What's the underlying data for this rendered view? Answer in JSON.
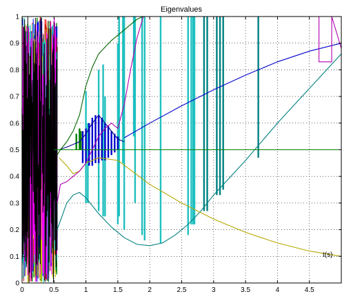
{
  "chart_data": {
    "type": "line",
    "title": "Eigenvalues",
    "xlabel": "t(s)",
    "ylabel": "",
    "xlim": [
      0,
      5
    ],
    "ylim": [
      0,
      1
    ],
    "grid": true,
    "x_ticks": [
      0,
      0.5,
      1,
      1.5,
      2,
      2.5,
      3,
      3.5,
      4,
      4.5
    ],
    "x_tick_labels": [
      "0",
      "0.5",
      "1",
      "1.5",
      "2",
      "2.5",
      "3",
      "3.5",
      "4",
      "4.5"
    ],
    "y_ticks": [
      0,
      0.1,
      0.2,
      0.3,
      0.4,
      0.5,
      0.6,
      0.7,
      0.8,
      0.9,
      1
    ],
    "y_tick_labels": [
      "0",
      "0.1",
      "0.2",
      "0.3",
      "0.4",
      "0.5",
      "0.6",
      "0.7",
      "0.8",
      "0.9",
      "1"
    ],
    "series": [
      {
        "color": "#0000cc",
        "x": [
          1.6,
          2.0,
          2.5,
          3.0,
          3.5,
          4.0,
          4.5,
          5.0
        ],
        "y": [
          0.545,
          0.6,
          0.665,
          0.725,
          0.78,
          0.83,
          0.87,
          0.9
        ]
      },
      {
        "color": "#00008b",
        "x": [
          0.58,
          0.7,
          0.8,
          0.9,
          1.0,
          1.1,
          1.2,
          1.3,
          1.4,
          1.5,
          1.6
        ],
        "y": [
          0.5,
          0.51,
          0.52,
          0.53,
          0.56,
          0.6,
          0.63,
          0.6,
          0.57,
          0.54,
          0.53
        ]
      },
      {
        "color": "#006600",
        "x": [
          0.55,
          0.6,
          0.7,
          0.8,
          0.9,
          1.0,
          1.1,
          1.2,
          1.4,
          1.6,
          1.8,
          1.9
        ],
        "y": [
          0.48,
          0.5,
          0.53,
          0.57,
          0.63,
          0.74,
          0.81,
          0.86,
          0.91,
          0.95,
          0.99,
          1.0
        ]
      },
      {
        "color": "#008080",
        "x": [
          0.55,
          0.7,
          0.8,
          0.9,
          1.0,
          1.2,
          1.4,
          1.6,
          1.8,
          2.0,
          2.2,
          2.4,
          2.6,
          2.8,
          3.0,
          3.5,
          4.0,
          4.5,
          5.0
        ],
        "y": [
          0.2,
          0.3,
          0.33,
          0.34,
          0.32,
          0.26,
          0.21,
          0.17,
          0.145,
          0.14,
          0.15,
          0.18,
          0.22,
          0.27,
          0.33,
          0.46,
          0.6,
          0.73,
          0.86
        ]
      },
      {
        "color": "#b5a800",
        "x": [
          0.58,
          0.7,
          0.8,
          0.9,
          1.0,
          1.2,
          1.5,
          2.0,
          2.5,
          3.0,
          3.5,
          4.0,
          4.5,
          5.0
        ],
        "y": [
          0.47,
          0.44,
          0.41,
          0.42,
          0.45,
          0.47,
          0.46,
          0.37,
          0.3,
          0.24,
          0.19,
          0.15,
          0.12,
          0.1
        ]
      },
      {
        "color": "#008000",
        "x": [
          0.5,
          5.0
        ],
        "y": [
          0.5,
          0.5
        ]
      },
      {
        "color": "#b000b0",
        "x": [
          0.55,
          0.6,
          0.7,
          0.8,
          0.9,
          1.0,
          1.1,
          1.2,
          1.3,
          1.4,
          1.5,
          1.6,
          1.7,
          1.8,
          1.9
        ],
        "y": [
          0.3,
          0.37,
          0.38,
          0.4,
          0.42,
          0.45,
          0.5,
          0.55,
          0.58,
          0.6,
          0.58,
          0.67,
          0.8,
          0.92,
          1.0
        ]
      },
      {
        "color": "#b000b0",
        "x": [
          4.65,
          4.65,
          4.85,
          4.85,
          5.0
        ],
        "y": [
          1.0,
          0.83,
          0.83,
          1.0,
          0.88
        ]
      }
    ],
    "vertical_segments": [
      {
        "color": "#1fbfbf",
        "x": [
          1.5,
          1.52,
          1.58,
          1.6,
          1.75,
          1.77,
          1.88,
          1.92,
          2.17,
          2.6,
          2.65,
          2.68,
          2.7
        ],
        "y_ranges": [
          [
            0.22,
            0.9
          ],
          [
            0.25,
            1.0
          ],
          [
            0.45,
            1.0
          ],
          [
            0.2,
            1.0
          ],
          [
            0.55,
            1.0
          ],
          [
            0.3,
            1.0
          ],
          [
            0.18,
            1.0
          ],
          [
            0.16,
            1.0
          ],
          [
            0.15,
            1.0
          ],
          [
            0.18,
            1.0
          ],
          [
            0.22,
            1.0
          ],
          [
            0.22,
            1.0
          ],
          [
            0.22,
            1.0
          ]
        ]
      },
      {
        "color": "#1fbfbf",
        "x": [
          1.0,
          1.03,
          1.2,
          1.27,
          1.3
        ],
        "y_ranges": [
          [
            0.3,
            0.72
          ],
          [
            0.3,
            0.6
          ],
          [
            0.27,
            0.8
          ],
          [
            0.25,
            0.82
          ],
          [
            0.25,
            0.7
          ]
        ]
      },
      {
        "color": "#008080",
        "x": [
          2.85,
          2.9,
          3.05,
          3.1,
          3.15,
          3.7
        ],
        "y_ranges": [
          [
            0.27,
            1.0
          ],
          [
            0.27,
            1.0
          ],
          [
            0.33,
            1.0
          ],
          [
            0.33,
            1.0
          ],
          [
            0.35,
            1.0
          ],
          [
            0.47,
            1.0
          ]
        ]
      },
      {
        "color": "#0000cc",
        "x": [
          0.95,
          1.0,
          1.05,
          1.1,
          1.15,
          1.2,
          1.25,
          1.3,
          1.35,
          1.4,
          1.45,
          1.5
        ],
        "y_ranges": [
          [
            0.45,
            0.57
          ],
          [
            0.45,
            0.58
          ],
          [
            0.44,
            0.6
          ],
          [
            0.44,
            0.62
          ],
          [
            0.45,
            0.63
          ],
          [
            0.45,
            0.63
          ],
          [
            0.46,
            0.62
          ],
          [
            0.46,
            0.6
          ],
          [
            0.47,
            0.59
          ],
          [
            0.48,
            0.57
          ],
          [
            0.49,
            0.56
          ],
          [
            0.5,
            0.55
          ]
        ]
      },
      {
        "color": "#008000",
        "x": [
          0.85,
          0.9,
          0.92
        ],
        "y_ranges": [
          [
            0.5,
            0.56
          ],
          [
            0.5,
            0.58
          ],
          [
            0.5,
            0.57
          ]
        ]
      }
    ],
    "noise_band": {
      "x_range": [
        0,
        0.55
      ],
      "y_range": [
        0,
        1
      ],
      "colors": [
        "#008000",
        "#0000ff",
        "#ff0000",
        "#cccc00",
        "#00cccc",
        "#ff00ff",
        "#000000"
      ]
    }
  }
}
